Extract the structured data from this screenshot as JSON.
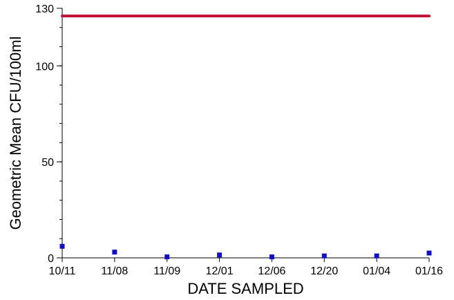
{
  "chart_data": {
    "type": "scatter",
    "title": "",
    "xlabel": "DATE SAMPLED",
    "ylabel": "Geometric Mean CFU/100ml",
    "categories": [
      "10/11",
      "11/08",
      "11/09",
      "12/01",
      "12/06",
      "12/20",
      "01/04",
      "01/16"
    ],
    "ylim": [
      0,
      130
    ],
    "yticks": [
      0,
      50,
      100,
      130
    ],
    "y_minor_tick_step": 10,
    "grid": false,
    "reference_line": {
      "value": 126,
      "color": "#c0103a"
    },
    "series": [
      {
        "color": "#1010c0",
        "marker": "square",
        "values": [
          6,
          3,
          0.5,
          1.5,
          0.5,
          1,
          1,
          2.5
        ]
      }
    ]
  }
}
